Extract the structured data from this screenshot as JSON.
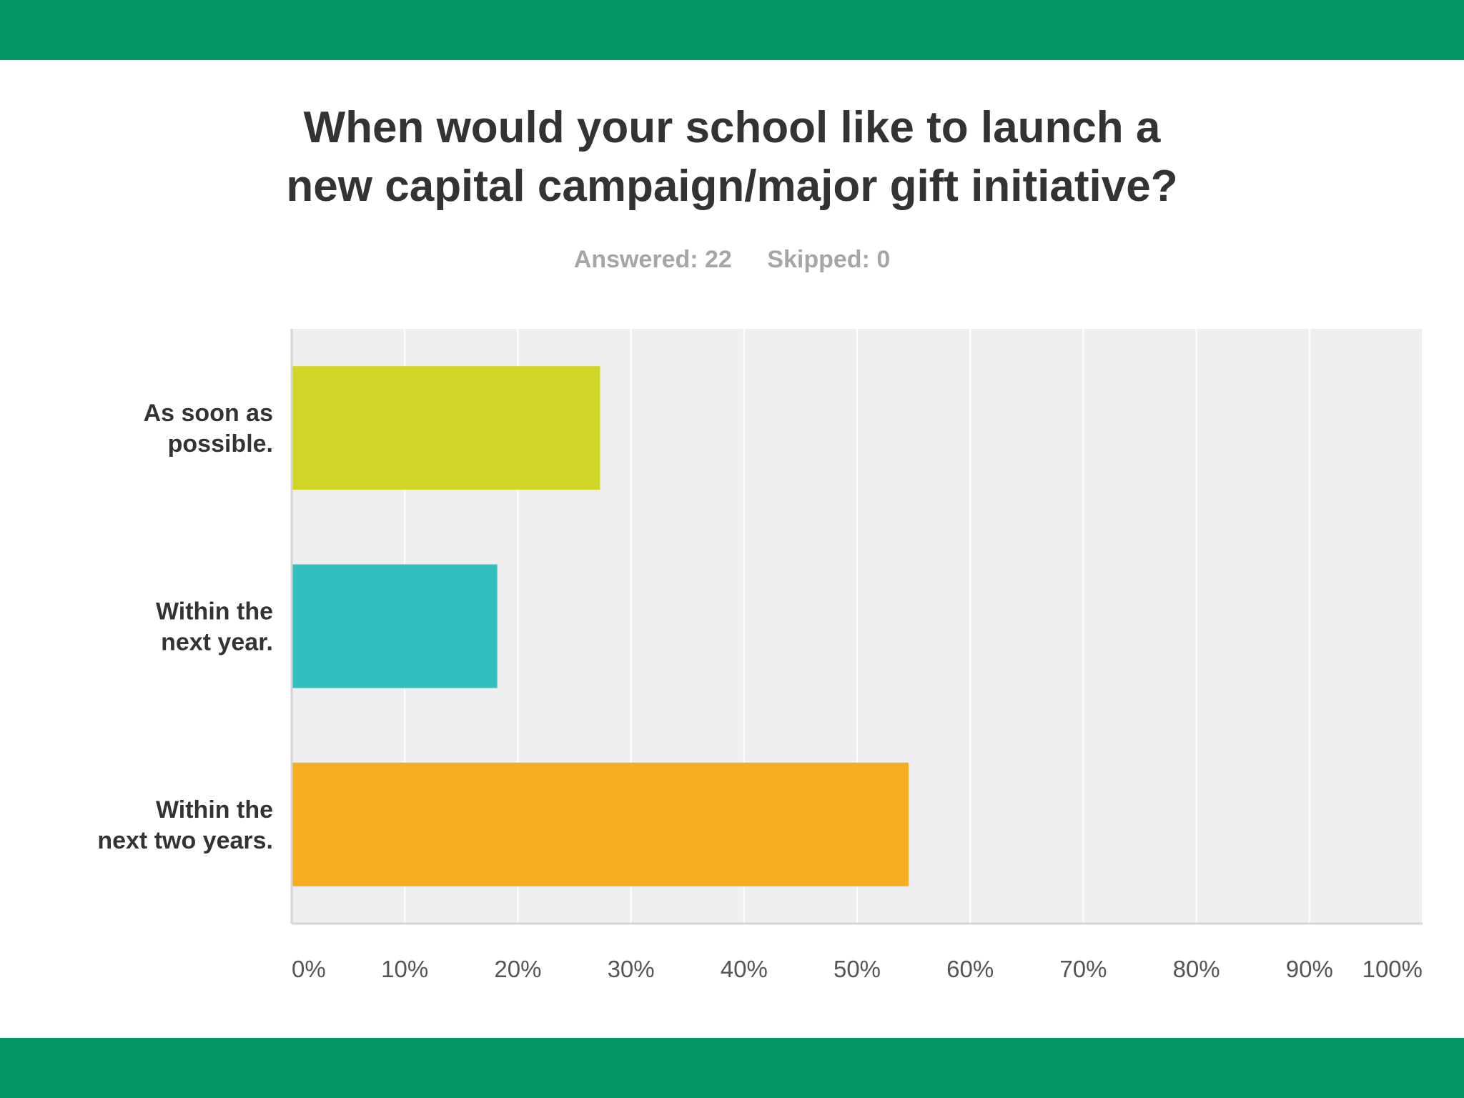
{
  "title_lines": [
    "When would your school like to launch a",
    "new capital campaign/major gift initiative?"
  ],
  "stats": {
    "answered": "Answered: 22",
    "skipped": "Skipped: 0"
  },
  "colors": {
    "band": "#059767",
    "plot_bg": "#efeef0",
    "gridline": "#ffffff"
  },
  "chart_data": {
    "type": "bar",
    "orientation": "horizontal",
    "title": "When would your school like to launch a new capital campaign/major gift initiative?",
    "categories": [
      [
        "As soon as",
        "possible."
      ],
      [
        "Within the",
        "next year."
      ],
      [
        "Within the",
        "next two years."
      ]
    ],
    "values": [
      27.27,
      18.18,
      54.55
    ],
    "unit": "%",
    "bar_colors": [
      "#cfd628",
      "#33bfbf",
      "#f7ad22"
    ],
    "xlim": [
      0,
      100
    ],
    "xticks": [
      0,
      10,
      20,
      30,
      40,
      50,
      60,
      70,
      80,
      90,
      100
    ],
    "xtick_labels": [
      "0%",
      "10%",
      "20%",
      "30%",
      "40%",
      "50%",
      "60%",
      "70%",
      "80%",
      "90%",
      "100%"
    ],
    "xlabel": "",
    "ylabel": "",
    "grid": true,
    "legend": "none"
  }
}
